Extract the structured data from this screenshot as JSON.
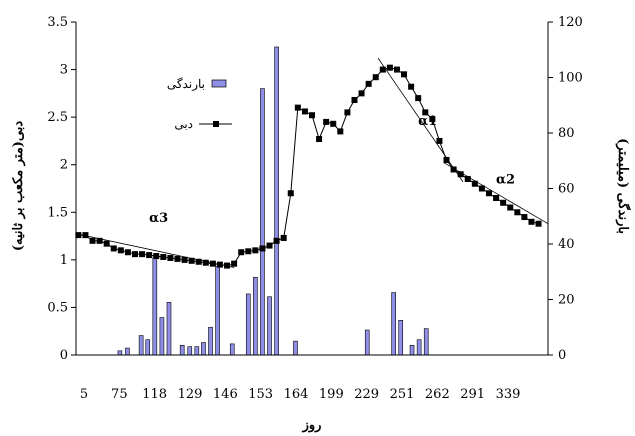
{
  "chart_data": {
    "type": "bar+line",
    "xlabel": "روز",
    "y_left_label": "دبی(متر مکعب بر ثانیه)",
    "y_right_label": "بارندگی (میلیمتر)",
    "y_left_ticks": [
      "0",
      "0.5",
      "1",
      "1.5",
      "2",
      "2.5",
      "3",
      "3.5"
    ],
    "y_left_lim": [
      0,
      3.5
    ],
    "y_right_ticks": [
      "0",
      "20",
      "40",
      "60",
      "80",
      "100",
      "120"
    ],
    "y_right_lim": [
      0,
      120
    ],
    "x_ticks": [
      "5",
      "75",
      "118",
      "129",
      "146",
      "153",
      "164",
      "199",
      "229",
      "251",
      "262",
      "291",
      "339"
    ],
    "x_range": [
      0,
      100
    ],
    "legend": [
      {
        "label": "بارندگی",
        "kind": "bar"
      },
      {
        "label": "دبی",
        "kind": "line"
      }
    ],
    "series": [
      {
        "name": "بارندگی",
        "axis": "right",
        "type": "bar",
        "points": [
          [
            9.3,
            1.5
          ],
          [
            10.9,
            2.5
          ],
          [
            13.8,
            7
          ],
          [
            15.2,
            5.5
          ],
          [
            16.7,
            35
          ],
          [
            18.2,
            13.5
          ],
          [
            19.7,
            19
          ],
          [
            22.5,
            3.5
          ],
          [
            24.1,
            3
          ],
          [
            25.6,
            3
          ],
          [
            27.0,
            4.5
          ],
          [
            28.5,
            10
          ],
          [
            30.0,
            32
          ],
          [
            33.1,
            4
          ],
          [
            36.5,
            22
          ],
          [
            38.0,
            28
          ],
          [
            39.5,
            96
          ],
          [
            41.0,
            21
          ],
          [
            42.5,
            111
          ],
          [
            46.5,
            5
          ],
          [
            61.7,
            9
          ],
          [
            67.3,
            22.5
          ],
          [
            68.8,
            12.5
          ],
          [
            71.2,
            3.5
          ],
          [
            72.7,
            5.5
          ],
          [
            74.2,
            9.5
          ]
        ]
      },
      {
        "name": "دبی",
        "axis": "left",
        "type": "line",
        "points": [
          [
            0.5,
            1.26
          ],
          [
            2.0,
            1.26
          ],
          [
            3.5,
            1.2
          ],
          [
            5.0,
            1.2
          ],
          [
            6.5,
            1.17
          ],
          [
            8.0,
            1.12
          ],
          [
            9.5,
            1.1
          ],
          [
            11.0,
            1.08
          ],
          [
            12.5,
            1.06
          ],
          [
            14.0,
            1.06
          ],
          [
            15.5,
            1.05
          ],
          [
            17.0,
            1.04
          ],
          [
            18.5,
            1.03
          ],
          [
            20.0,
            1.02
          ],
          [
            21.5,
            1.01
          ],
          [
            23.0,
            1.0
          ],
          [
            24.5,
            0.99
          ],
          [
            26.0,
            0.98
          ],
          [
            27.5,
            0.97
          ],
          [
            29.0,
            0.96
          ],
          [
            30.5,
            0.95
          ],
          [
            32.0,
            0.94
          ],
          [
            33.5,
            0.96
          ],
          [
            35.0,
            1.08
          ],
          [
            36.5,
            1.09
          ],
          [
            38.0,
            1.1
          ],
          [
            39.5,
            1.12
          ],
          [
            41.0,
            1.15
          ],
          [
            42.5,
            1.2
          ],
          [
            44.0,
            1.23
          ],
          [
            45.5,
            1.7
          ],
          [
            47.0,
            2.6
          ],
          [
            48.5,
            2.56
          ],
          [
            50.0,
            2.52
          ],
          [
            51.5,
            2.27
          ],
          [
            53.0,
            2.45
          ],
          [
            54.5,
            2.43
          ],
          [
            56.0,
            2.35
          ],
          [
            57.5,
            2.55
          ],
          [
            59.0,
            2.68
          ],
          [
            60.5,
            2.75
          ],
          [
            62.0,
            2.85
          ],
          [
            63.5,
            2.92
          ],
          [
            65.0,
            3.0
          ],
          [
            66.5,
            3.02
          ],
          [
            68.0,
            3.0
          ],
          [
            69.5,
            2.95
          ],
          [
            71.0,
            2.82
          ],
          [
            72.5,
            2.7
          ],
          [
            74.0,
            2.55
          ],
          [
            75.5,
            2.48
          ],
          [
            77.0,
            2.25
          ],
          [
            78.5,
            2.05
          ],
          [
            80.0,
            1.95
          ],
          [
            81.5,
            1.9
          ],
          [
            83.0,
            1.85
          ],
          [
            84.5,
            1.8
          ],
          [
            86.0,
            1.75
          ],
          [
            87.5,
            1.7
          ],
          [
            89.0,
            1.65
          ],
          [
            90.5,
            1.6
          ],
          [
            92.0,
            1.55
          ],
          [
            93.5,
            1.5
          ],
          [
            95.0,
            1.45
          ],
          [
            96.5,
            1.4
          ],
          [
            98.0,
            1.38
          ]
        ]
      }
    ],
    "trend_lines": [
      {
        "label": "α3",
        "from": [
          0.5,
          1.27
        ],
        "to": [
          33.5,
          0.92
        ]
      },
      {
        "label": "α1",
        "from": [
          64.0,
          3.12
        ],
        "to": [
          82.0,
          1.82
        ]
      },
      {
        "label": "α2",
        "from": [
          78.0,
          2.02
        ],
        "to": [
          100.0,
          1.38
        ]
      }
    ],
    "annotations": [
      {
        "text": "α1",
        "x": 74.5,
        "y": 2.42
      },
      {
        "text": "α2",
        "x": 91.0,
        "y": 1.8
      },
      {
        "text": "α3",
        "x": 17.5,
        "y": 1.4
      }
    ],
    "bar_color": "#8f8fe8",
    "line_color": "#000000"
  }
}
